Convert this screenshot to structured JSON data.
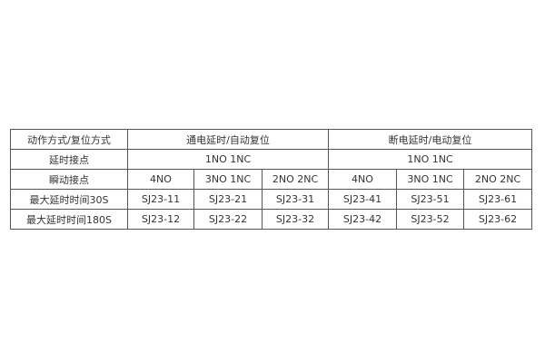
{
  "table": {
    "row_headers": [
      "动作方式/复位方式",
      "延时接点",
      "瞬动接点",
      "最大延时时间30S",
      "最大延时时间180S"
    ],
    "groups": [
      "通电延时/自动复位",
      "断电延时/电动复位"
    ],
    "delay_contacts": [
      "1NO 1NC",
      "1NO 1NC"
    ],
    "instant_contacts": [
      "4NO",
      "3NO 1NC",
      "2NO 2NC",
      "4NO",
      "3NO 1NC",
      "2NO 2NC"
    ],
    "max_30s": [
      "SJ23-11",
      "SJ23-21",
      "SJ23-31",
      "SJ23-41",
      "SJ23-51",
      "SJ23-61"
    ],
    "max_180s": [
      "SJ23-12",
      "SJ23-22",
      "SJ23-32",
      "SJ23-42",
      "SJ23-52",
      "SJ23-62"
    ]
  }
}
